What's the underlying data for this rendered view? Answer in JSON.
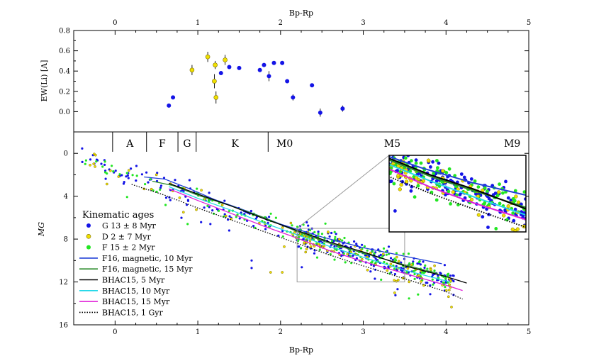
{
  "chart_data": {
    "type": "scatter",
    "top_axis_label": "Bp-Rp",
    "bottom_axis_label": "Bp-Rp",
    "x_ticks": [
      "0",
      "1",
      "2",
      "3",
      "4",
      "5"
    ],
    "xlim": [
      -0.5,
      5.0
    ],
    "panels": [
      {
        "name": "lithium",
        "ylabel": "EW(Li) [A]",
        "ylim": [
          -0.2,
          0.8
        ],
        "y_ticks": [
          "0.0",
          "0.2",
          "0.4",
          "0.6",
          "0.8"
        ],
        "series": [
          {
            "name": "G",
            "color": "#1414e6",
            "points": [
              {
                "x": 0.65,
                "y": 0.06
              },
              {
                "x": 0.7,
                "y": 0.14
              },
              {
                "x": 1.28,
                "y": 0.38
              },
              {
                "x": 1.38,
                "y": 0.44
              },
              {
                "x": 1.5,
                "y": 0.43
              },
              {
                "x": 1.75,
                "y": 0.41
              },
              {
                "x": 1.8,
                "y": 0.46
              },
              {
                "x": 1.86,
                "y": 0.35,
                "err": 0.05
              },
              {
                "x": 1.92,
                "y": 0.48
              },
              {
                "x": 2.02,
                "y": 0.48
              },
              {
                "x": 2.08,
                "y": 0.3
              },
              {
                "x": 2.15,
                "y": 0.14,
                "err": 0.03
              },
              {
                "x": 2.38,
                "y": 0.26
              },
              {
                "x": 2.48,
                "y": -0.01,
                "err": 0.04
              },
              {
                "x": 2.75,
                "y": 0.03,
                "err": 0.03
              }
            ]
          },
          {
            "name": "D",
            "color": "#f0e000",
            "points": [
              {
                "x": 0.93,
                "y": 0.41,
                "err": 0.05
              },
              {
                "x": 1.12,
                "y": 0.54,
                "err": 0.05
              },
              {
                "x": 1.21,
                "y": 0.46,
                "err": 0.04
              },
              {
                "x": 1.2,
                "y": 0.3,
                "err": 0.07
              },
              {
                "x": 1.22,
                "y": 0.14,
                "err": 0.06
              },
              {
                "x": 1.33,
                "y": 0.51,
                "err": 0.05
              }
            ]
          }
        ]
      },
      {
        "name": "cmd",
        "ylabel": "MG",
        "ylim": [
          16,
          -2
        ],
        "y_ticks": [
          "0",
          "4",
          "8",
          "12",
          "16"
        ],
        "spectral_types": [
          {
            "label": "A",
            "x": 0.18
          },
          {
            "label": "F",
            "x": 0.57
          },
          {
            "label": "G",
            "x": 0.87
          },
          {
            "label": "K",
            "x": 1.45
          },
          {
            "label": "M0",
            "x": 2.05
          },
          {
            "label": "M5",
            "x": 3.35
          },
          {
            "label": "M9",
            "x": 4.8
          }
        ],
        "spectral_boundaries": [
          -0.03,
          0.38,
          0.76,
          0.98,
          1.85
        ],
        "legend_title": "Kinematic ages",
        "legend": [
          {
            "label": "G 13 ± 8 Myr",
            "kind": "marker",
            "color": "#1414e6"
          },
          {
            "label": "D 2 ± 7 Myr",
            "kind": "marker",
            "color": "#f0e000"
          },
          {
            "label": "F 15 ± 2 Myr",
            "kind": "marker",
            "color": "#22e622"
          },
          {
            "label": "F16, magnetic, 10 Myr",
            "kind": "line",
            "color": "#1f3fd6"
          },
          {
            "label": "F16, magnetic, 15 Myr",
            "kind": "line",
            "color": "#2a8a2a"
          },
          {
            "label": "BHAC15, 5 Myr",
            "kind": "line",
            "color": "#000000"
          },
          {
            "label": "BHAC15, 10 Myr",
            "kind": "line",
            "color": "#22d8e8"
          },
          {
            "label": "BHAC15, 15 Myr",
            "kind": "line",
            "color": "#e020d8"
          },
          {
            "label": "BHAC15, 1 Gyr",
            "kind": "dotted",
            "color": "#000000"
          }
        ],
        "isochrones": [
          {
            "name": "F16, magnetic, 10 Myr",
            "color": "#1f3fd6",
            "points": [
              [
                0.35,
                2.2
              ],
              [
                0.6,
                2.4
              ],
              [
                0.9,
                3.3
              ],
              [
                1.2,
                4.3
              ],
              [
                1.6,
                5.4
              ],
              [
                2.0,
                6.6
              ],
              [
                2.5,
                7.8
              ],
              [
                3.0,
                8.8
              ],
              [
                3.5,
                9.6
              ],
              [
                3.95,
                10.3
              ]
            ]
          },
          {
            "name": "F16, magnetic, 15 Myr",
            "color": "#2a8a2a",
            "points": [
              [
                0.45,
                2.6
              ],
              [
                0.7,
                3.0
              ],
              [
                1.0,
                3.9
              ],
              [
                1.4,
                4.9
              ],
              [
                1.8,
                6.0
              ],
              [
                2.2,
                7.3
              ],
              [
                2.6,
                8.4
              ],
              [
                3.0,
                9.3
              ],
              [
                3.5,
                10.4
              ],
              [
                3.9,
                11.2
              ]
            ]
          },
          {
            "name": "BHAC15, 5 Myr",
            "color": "#000000",
            "points": [
              [
                0.65,
                2.8
              ],
              [
                1.0,
                3.8
              ],
              [
                1.4,
                4.9
              ],
              [
                1.8,
                6.1
              ],
              [
                2.2,
                7.2
              ],
              [
                2.6,
                8.3
              ],
              [
                3.0,
                9.2
              ],
              [
                3.5,
                10.5
              ],
              [
                4.0,
                11.5
              ],
              [
                4.25,
                12.1
              ]
            ]
          },
          {
            "name": "BHAC15, 10 Myr",
            "color": "#22d8e8",
            "points": [
              [
                0.65,
                3.1
              ],
              [
                1.0,
                4.2
              ],
              [
                1.4,
                5.3
              ],
              [
                1.8,
                6.5
              ],
              [
                2.2,
                7.6
              ],
              [
                2.6,
                8.7
              ],
              [
                3.0,
                9.7
              ],
              [
                3.5,
                10.9
              ],
              [
                3.9,
                11.7
              ],
              [
                4.05,
                12.0
              ]
            ]
          },
          {
            "name": "BHAC15, 15 Myr",
            "color": "#e020d8",
            "points": [
              [
                0.65,
                3.3
              ],
              [
                1.0,
                4.4
              ],
              [
                1.4,
                5.6
              ],
              [
                1.8,
                6.8
              ],
              [
                2.2,
                7.9
              ],
              [
                2.6,
                9.1
              ],
              [
                3.0,
                10.1
              ],
              [
                3.5,
                11.2
              ],
              [
                4.0,
                12.3
              ],
              [
                4.2,
                12.8
              ]
            ]
          },
          {
            "name": "BHAC15, 1 Gyr",
            "color": "#000000",
            "points": [
              [
                0.2,
                2.9
              ],
              [
                0.6,
                3.9
              ],
              [
                1.0,
                5.1
              ],
              [
                1.4,
                6.2
              ],
              [
                1.8,
                7.3
              ],
              [
                2.2,
                8.4
              ],
              [
                2.6,
                9.5
              ],
              [
                3.0,
                10.5
              ],
              [
                3.5,
                11.7
              ],
              [
                4.0,
                12.9
              ],
              [
                4.2,
                13.6
              ]
            ]
          }
        ],
        "inset": {
          "zoom_region": {
            "x": [
              2.2,
              3.5
            ],
            "y": [
              7.0,
              12.0
            ]
          }
        }
      }
    ]
  }
}
